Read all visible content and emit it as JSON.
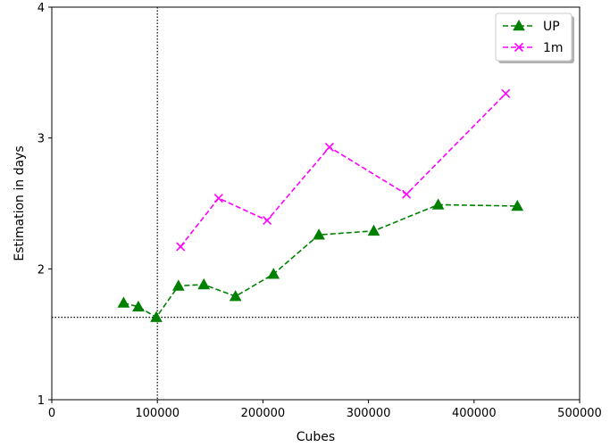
{
  "chart_data": {
    "type": "line",
    "xlabel": "Cubes",
    "ylabel": "Estimation in days",
    "xlim": [
      0,
      500000
    ],
    "ylim": [
      1,
      4
    ],
    "xticks": [
      0,
      100000,
      200000,
      300000,
      400000,
      500000
    ],
    "xtick_labels": [
      "0",
      "100000",
      "200000",
      "300000",
      "400000",
      "500000"
    ],
    "yticks": [
      1,
      2,
      3,
      4
    ],
    "ytick_labels": [
      "1",
      "2",
      "3",
      "4"
    ],
    "grid": false,
    "legend_position": "top-right",
    "reference_lines": {
      "vertical_x": 100000,
      "horizontal_y": 1.63,
      "style": "dotted",
      "color": "#000000"
    },
    "series": [
      {
        "name": "UP",
        "color": "#008000",
        "marker": "triangle",
        "line_style": "dashed",
        "x": [
          68000,
          82000,
          99000,
          120000,
          144000,
          174000,
          210000,
          253000,
          305000,
          366000,
          441000
        ],
        "y": [
          1.74,
          1.71,
          1.63,
          1.87,
          1.88,
          1.79,
          1.96,
          2.26,
          2.29,
          2.49,
          2.48
        ]
      },
      {
        "name": "1m",
        "color": "#ff00ff",
        "marker": "x",
        "line_style": "dashed",
        "x": [
          122000,
          158000,
          204000,
          263000,
          336000,
          430000
        ],
        "y": [
          2.17,
          2.54,
          2.37,
          2.93,
          2.57,
          3.34
        ]
      }
    ]
  }
}
